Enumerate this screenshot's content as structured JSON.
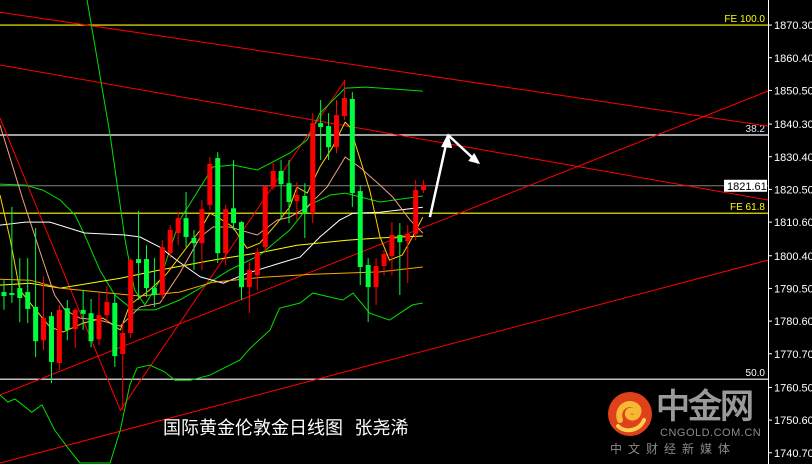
{
  "chart_data": {
    "type": "candlestick",
    "title": "国际黄金伦敦金日线图  张尧浠",
    "ylim": [
      1737.3,
      1877.9
    ],
    "xlim": [
      -0.5,
      96.5
    ],
    "y_ticks": [
      "1870.30",
      "1860.40",
      "1850.50",
      "1840.30",
      "1830.40",
      "1820.50",
      "1810.60",
      "1800.40",
      "1790.50",
      "1780.60",
      "1770.70",
      "1760.50",
      "1750.60",
      "1740.70"
    ],
    "current_price": "1821.61",
    "colors": {
      "up": "#ff0000",
      "down": "#00ff3c",
      "background": "#000000",
      "axis": "#ffffff",
      "current": "#808080"
    },
    "candles_ohlc": [
      [
        1789.4,
        1793.0,
        1784.0,
        1788.2
      ],
      [
        1789.1,
        1815.2,
        1786.1,
        1788.5
      ],
      [
        1790.6,
        1799.7,
        1780.3,
        1787.6
      ],
      [
        1789.4,
        1799.7,
        1780.0,
        1784.3
      ],
      [
        1784.9,
        1808.8,
        1769.7,
        1774.5
      ],
      [
        1774.8,
        1794.2,
        1771.8,
        1781.5
      ],
      [
        1782.1,
        1783.3,
        1761.8,
        1768.2
      ],
      [
        1767.9,
        1785.5,
        1765.8,
        1784.0
      ],
      [
        1784.5,
        1787.0,
        1774.8,
        1777.9
      ],
      [
        1778.2,
        1784.5,
        1772.4,
        1784.0
      ],
      [
        1784.0,
        1790.0,
        1777.9,
        1782.8
      ],
      [
        1783.0,
        1787.3,
        1772.7,
        1774.5
      ],
      [
        1775.1,
        1789.1,
        1773.3,
        1782.4
      ],
      [
        1782.4,
        1791.2,
        1780.0,
        1786.4
      ],
      [
        1786.1,
        1789.1,
        1766.7,
        1770.0
      ],
      [
        1770.6,
        1780.3,
        1753.6,
        1777.0
      ],
      [
        1777.0,
        1799.7,
        1775.5,
        1799.1
      ],
      [
        1799.4,
        1814.0,
        1787.0,
        1798.2
      ],
      [
        1799.4,
        1803.6,
        1787.9,
        1790.6
      ],
      [
        1790.6,
        1799.7,
        1784.9,
        1788.5
      ],
      [
        1788.5,
        1805.1,
        1787.0,
        1803.0
      ],
      [
        1801.2,
        1809.7,
        1799.7,
        1808.2
      ],
      [
        1807.3,
        1813.6,
        1803.6,
        1811.8
      ],
      [
        1811.8,
        1819.7,
        1803.0,
        1806.1
      ],
      [
        1805.8,
        1808.2,
        1796.1,
        1804.2
      ],
      [
        1804.2,
        1817.3,
        1796.1,
        1814.5
      ],
      [
        1815.8,
        1830.3,
        1814.2,
        1828.2
      ],
      [
        1830.0,
        1831.8,
        1798.2,
        1801.2
      ],
      [
        1801.2,
        1815.8,
        1797.6,
        1814.5
      ],
      [
        1814.8,
        1829.4,
        1808.2,
        1810.3
      ],
      [
        1810.6,
        1810.9,
        1787.0,
        1790.9
      ],
      [
        1790.9,
        1798.5,
        1783.0,
        1796.1
      ],
      [
        1794.5,
        1802.7,
        1790.0,
        1801.5
      ],
      [
        1803.0,
        1821.8,
        1801.5,
        1821.5
      ],
      [
        1821.2,
        1828.5,
        1820.3,
        1826.1
      ],
      [
        1826.1,
        1829.4,
        1811.2,
        1822.1
      ],
      [
        1822.4,
        1829.4,
        1810.3,
        1816.7
      ],
      [
        1817.0,
        1822.7,
        1811.2,
        1818.8
      ],
      [
        1818.5,
        1822.4,
        1805.8,
        1813.3
      ],
      [
        1813.3,
        1843.6,
        1810.3,
        1840.6
      ],
      [
        1840.6,
        1847.6,
        1829.4,
        1839.4
      ],
      [
        1839.7,
        1843.6,
        1829.4,
        1833.3
      ],
      [
        1833.3,
        1847.6,
        1831.5,
        1843.0
      ],
      [
        1842.7,
        1853.6,
        1841.5,
        1848.2
      ],
      [
        1847.9,
        1850.0,
        1815.2,
        1819.4
      ],
      [
        1820.0,
        1821.8,
        1791.5,
        1797.0
      ],
      [
        1797.6,
        1799.7,
        1780.3,
        1790.9
      ],
      [
        1790.9,
        1799.7,
        1785.5,
        1797.3
      ],
      [
        1797.3,
        1802.1,
        1794.5,
        1800.9
      ],
      [
        1800.3,
        1810.6,
        1794.5,
        1806.7
      ],
      [
        1806.7,
        1810.3,
        1788.5,
        1804.5
      ],
      [
        1804.8,
        1809.7,
        1792.1,
        1807.0
      ],
      [
        1807.0,
        1823.3,
        1805.1,
        1820.3
      ],
      [
        1820.3,
        1823.3,
        1819.4,
        1821.8
      ]
    ],
    "overlays": [
      {
        "color": "#00e000",
        "points": [
          [
            10.5,
            1877.9
          ],
          [
            13.4,
            1837.0
          ],
          [
            15.3,
            1805.2
          ],
          [
            16.5,
            1790.0
          ],
          [
            17.8,
            1785.5
          ],
          [
            19.7,
            1793.0
          ],
          [
            22.2,
            1811.2
          ],
          [
            26.4,
            1827.3
          ],
          [
            28.9,
            1827.9
          ],
          [
            32.0,
            1826.4
          ],
          [
            36.1,
            1831.5
          ],
          [
            38.3,
            1835.5
          ],
          [
            39.9,
            1843.6
          ],
          [
            43.1,
            1851.2
          ],
          [
            45.8,
            1851.5
          ],
          [
            52.9,
            1850.3
          ]
        ]
      },
      {
        "color": "#00e000",
        "points": [
          [
            -0.5,
            1822.1
          ],
          [
            2.7,
            1821.8
          ],
          [
            4.9,
            1820.3
          ],
          [
            7.1,
            1817.3
          ],
          [
            9.0,
            1812.7
          ],
          [
            10.2,
            1806.7
          ],
          [
            12.1,
            1796.1
          ],
          [
            14.0,
            1788.5
          ],
          [
            16.3,
            1784.0
          ],
          [
            19.1,
            1784.0
          ],
          [
            22.2,
            1787.0
          ],
          [
            24.8,
            1790.6
          ],
          [
            28.5,
            1796.1
          ],
          [
            32.3,
            1800.6
          ],
          [
            36.1,
            1808.2
          ],
          [
            38.6,
            1815.8
          ],
          [
            41.2,
            1818.8
          ],
          [
            43.1,
            1819.4
          ],
          [
            47.5,
            1816.7
          ],
          [
            52.9,
            1818.5
          ]
        ]
      },
      {
        "color": "#00e000",
        "points": [
          [
            -0.5,
            1758.2
          ],
          [
            0.5,
            1756.1
          ],
          [
            1.4,
            1757.0
          ],
          [
            3.5,
            1753.0
          ],
          [
            4.8,
            1755.2
          ],
          [
            6.4,
            1747.6
          ],
          [
            8.1,
            1742.1
          ],
          [
            9.6,
            1737.6
          ],
          [
            13.4,
            1737.6
          ],
          [
            14.7,
            1747.6
          ],
          [
            15.9,
            1761.2
          ],
          [
            16.8,
            1766.4
          ],
          [
            18.4,
            1767.3
          ],
          [
            20.3,
            1765.2
          ],
          [
            21.6,
            1762.7
          ],
          [
            23.5,
            1762.7
          ],
          [
            26.0,
            1764.2
          ],
          [
            29.8,
            1768.8
          ],
          [
            31.1,
            1772.4
          ],
          [
            33.6,
            1777.9
          ],
          [
            34.8,
            1784.5
          ],
          [
            37.4,
            1786.1
          ],
          [
            39.0,
            1789.1
          ],
          [
            42.8,
            1787.0
          ],
          [
            44.1,
            1789.1
          ],
          [
            46.2,
            1783.0
          ],
          [
            48.7,
            1780.9
          ],
          [
            51.6,
            1785.5
          ],
          [
            52.9,
            1786.1
          ]
        ]
      },
      {
        "color": "#ffffff",
        "points": [
          [
            -0.5,
            1809.7
          ],
          [
            2.7,
            1810.6
          ],
          [
            5.8,
            1810.6
          ],
          [
            10.2,
            1807.3
          ],
          [
            15.3,
            1806.7
          ],
          [
            17.2,
            1806.1
          ],
          [
            19.7,
            1803.0
          ],
          [
            21.8,
            1799.1
          ],
          [
            24.8,
            1794.0
          ],
          [
            27.7,
            1792.1
          ],
          [
            30.7,
            1795.1
          ],
          [
            34.9,
            1798.2
          ],
          [
            37.4,
            1800.0
          ],
          [
            39.9,
            1806.1
          ],
          [
            42.4,
            1811.2
          ],
          [
            44.1,
            1813.3
          ],
          [
            47.5,
            1813.6
          ],
          [
            52.9,
            1815.1
          ]
        ]
      },
      {
        "color": "#ffff00",
        "points": [
          [
            -0.5,
            1791.5
          ],
          [
            3.3,
            1792.1
          ],
          [
            7.1,
            1790.6
          ],
          [
            14.7,
            1793.6
          ],
          [
            19.7,
            1796.1
          ],
          [
            26.4,
            1799.1
          ],
          [
            32.7,
            1801.5
          ],
          [
            37.0,
            1803.6
          ],
          [
            43.3,
            1805.1
          ],
          [
            47.5,
            1805.8
          ],
          [
            52.9,
            1806.4
          ]
        ]
      },
      {
        "color": "#ffa500",
        "points": [
          [
            -0.5,
            1793.3
          ],
          [
            3.3,
            1793.0
          ],
          [
            7.1,
            1790.6
          ],
          [
            12.1,
            1789.4
          ],
          [
            17.2,
            1788.2
          ],
          [
            22.2,
            1789.4
          ],
          [
            26.4,
            1792.4
          ],
          [
            32.7,
            1793.9
          ],
          [
            39.0,
            1794.8
          ],
          [
            47.5,
            1795.5
          ],
          [
            52.9,
            1797.0
          ]
        ]
      },
      {
        "color": "#ffd000",
        "points": [
          [
            -0.5,
            1818.8
          ],
          [
            0.8,
            1805.2
          ],
          [
            2.0,
            1790.0
          ],
          [
            3.7,
            1784.9
          ],
          [
            5.8,
            1778.8
          ],
          [
            7.5,
            1777.3
          ],
          [
            10.0,
            1780.0
          ],
          [
            12.5,
            1781.5
          ],
          [
            14.7,
            1777.9
          ],
          [
            15.9,
            1785.5
          ],
          [
            18.4,
            1790.0
          ],
          [
            20.6,
            1795.1
          ],
          [
            23.1,
            1803.0
          ],
          [
            24.8,
            1808.2
          ],
          [
            26.0,
            1813.3
          ],
          [
            27.0,
            1812.1
          ],
          [
            28.9,
            1809.1
          ],
          [
            30.7,
            1802.7
          ],
          [
            32.3,
            1804.2
          ],
          [
            34.5,
            1810.3
          ],
          [
            36.1,
            1815.2
          ],
          [
            37.0,
            1821.2
          ],
          [
            38.3,
            1819.4
          ],
          [
            39.9,
            1827.3
          ],
          [
            41.5,
            1833.3
          ],
          [
            43.1,
            1840.9
          ],
          [
            43.7,
            1839.4
          ],
          [
            44.9,
            1830.3
          ],
          [
            46.2,
            1820.3
          ],
          [
            47.5,
            1806.1
          ],
          [
            48.7,
            1799.1
          ],
          [
            50.3,
            1800.6
          ],
          [
            51.6,
            1806.1
          ],
          [
            52.9,
            1812.1
          ]
        ]
      },
      {
        "color": "#f4a080",
        "points": [
          [
            -0.5,
            1840.0
          ],
          [
            2.4,
            1817.3
          ],
          [
            4.9,
            1799.1
          ],
          [
            6.4,
            1788.5
          ],
          [
            7.7,
            1784.0
          ],
          [
            9.6,
            1781.5
          ],
          [
            12.1,
            1780.9
          ],
          [
            14.7,
            1779.1
          ],
          [
            17.2,
            1784.9
          ],
          [
            19.7,
            1786.1
          ],
          [
            22.2,
            1795.1
          ],
          [
            24.8,
            1806.1
          ],
          [
            26.4,
            1809.1
          ],
          [
            28.5,
            1809.1
          ],
          [
            32.0,
            1806.7
          ],
          [
            34.5,
            1811.2
          ],
          [
            36.1,
            1812.1
          ],
          [
            38.3,
            1815.2
          ],
          [
            40.8,
            1821.2
          ],
          [
            43.1,
            1830.3
          ],
          [
            44.9,
            1827.3
          ],
          [
            47.5,
            1821.8
          ],
          [
            49.1,
            1818.2
          ],
          [
            51.3,
            1811.2
          ],
          [
            52.9,
            1807.3
          ]
        ]
      }
    ],
    "trendlines": [
      {
        "color": "#ff0000",
        "points": [
          [
            -0.5,
            1874.2
          ],
          [
            96.5,
            1839.7
          ]
        ]
      },
      {
        "color": "#ff0000",
        "points": [
          [
            -0.5,
            1858.2
          ],
          [
            96.5,
            1817.3
          ]
        ]
      },
      {
        "color": "#ff0000",
        "points": [
          [
            -0.5,
            1758.2
          ],
          [
            96.5,
            1850.3
          ]
        ]
      },
      {
        "color": "#ff0000",
        "points": [
          [
            -0.5,
            1737.6
          ],
          [
            96.5,
            1799.1
          ]
        ]
      },
      {
        "color": "#ff0000",
        "points": [
          [
            -0.5,
            1842.1
          ],
          [
            14.7,
            1753.6
          ],
          [
            43.1,
            1853.6
          ]
        ]
      }
    ],
    "levels": [
      {
        "label": "FE 100.0",
        "price": 1870.3,
        "color": "#ffff00"
      },
      {
        "label": "38.2",
        "price": 1837.0,
        "color": "#ffffff",
        "label_color": "#d8e8ff"
      },
      {
        "label": "FE 61.8",
        "price": 1813.3,
        "color": "#ffff00"
      },
      {
        "label": "50.0",
        "price": 1763.0,
        "color": "#ffffff",
        "label_color": "#ffffff"
      }
    ],
    "arrow": {
      "color": "#ffffff",
      "points": [
        [
          53.8,
          1812.1
        ],
        [
          56.1,
          1837.0
        ],
        [
          59.9,
          1828.5
        ]
      ]
    }
  },
  "logo": {
    "name": "中金网",
    "domain": "CNGOLD.COM.CN",
    "slogan": "中文财经新媒体",
    "colors": {
      "outer": "#e0401a",
      "inner": "#f6b935"
    }
  }
}
